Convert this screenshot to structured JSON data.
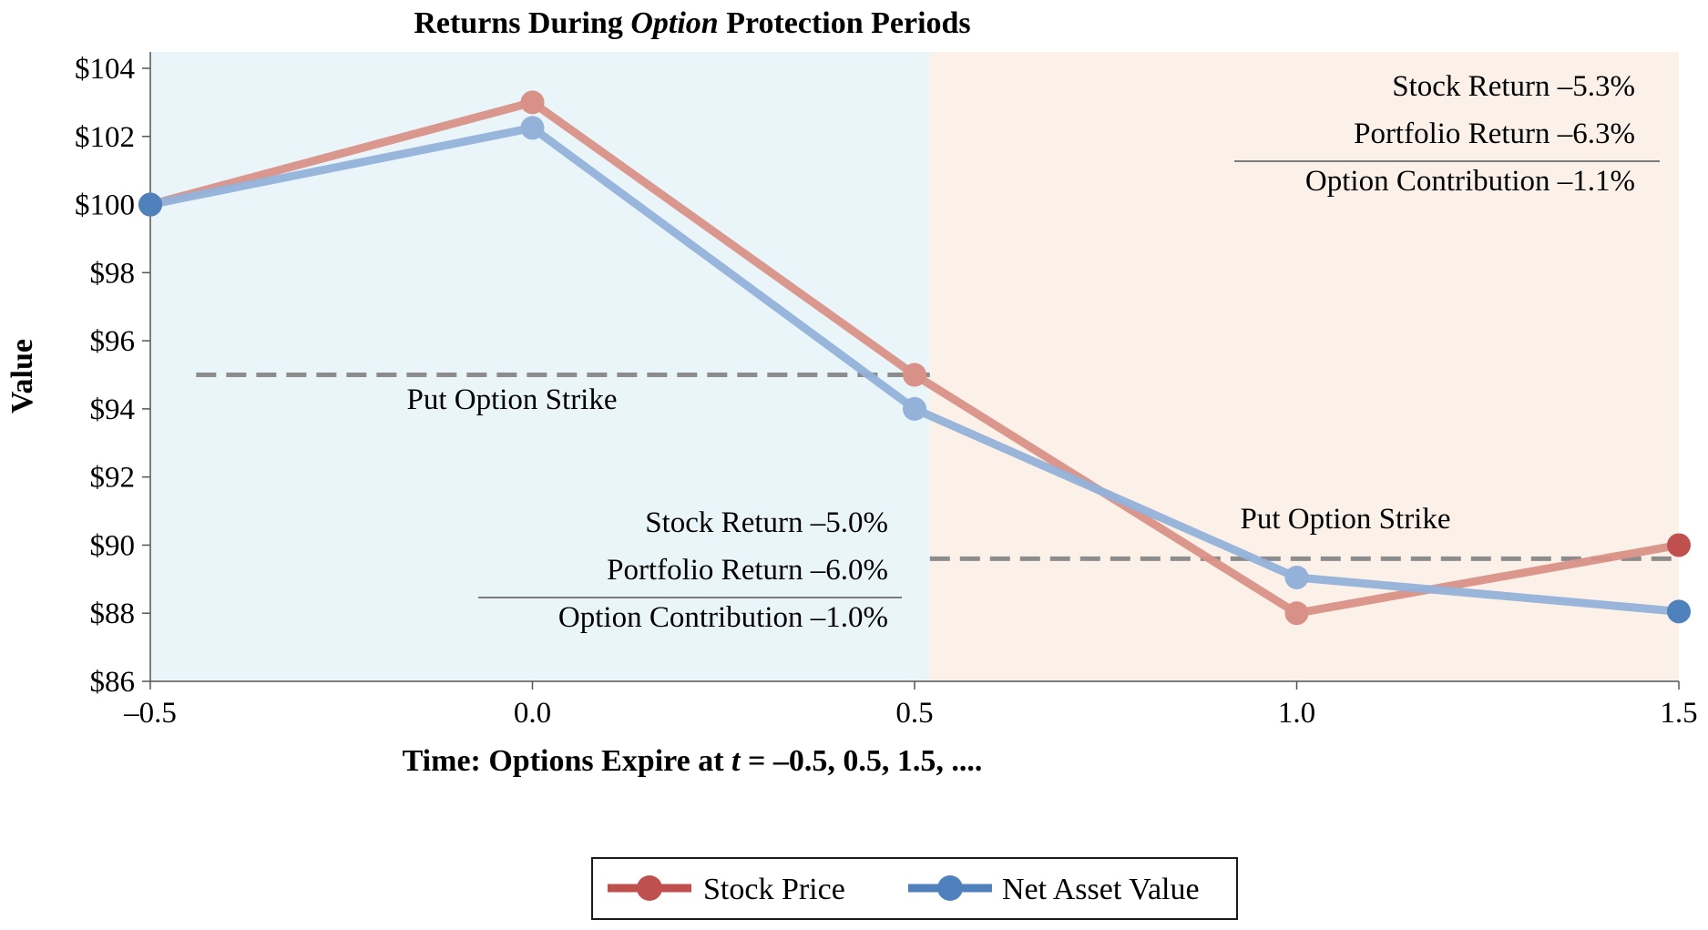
{
  "chart_data": {
    "type": "line",
    "title": {
      "prefix": "Returns During ",
      "emphasis": "Option",
      "suffix": " Protection Periods"
    },
    "xlabel": {
      "prefix": "Time: Options Expire at ",
      "emphasis": "t",
      "suffix": " = –0.5, 0.5, 1.5, ...."
    },
    "ylabel": "Value",
    "x": [
      -0.5,
      0.0,
      0.5,
      1.0,
      1.5
    ],
    "x_tick_labels": [
      "–0.5",
      "0.0",
      "0.5",
      "1.0",
      "1.5"
    ],
    "y_ticks": [
      86,
      88,
      90,
      92,
      94,
      96,
      98,
      100,
      102,
      104
    ],
    "y_tick_labels": [
      "$86",
      "$88",
      "$90",
      "$92",
      "$94",
      "$96",
      "$98",
      "$100",
      "$102",
      "$104"
    ],
    "xlim": [
      -0.5,
      1.5
    ],
    "ylim": [
      86,
      104
    ],
    "series": [
      {
        "name": "Stock Price",
        "color": "#c0504d",
        "faded_color": "#d99187",
        "values": [
          100,
          103,
          95,
          88,
          90
        ]
      },
      {
        "name": "Net Asset Value",
        "color": "#4f81bd",
        "faded_color": "#94b1d9",
        "values": [
          100,
          102.25,
          94,
          89.05,
          88.05
        ]
      }
    ],
    "periods": [
      {
        "from": -0.5,
        "to": 0.52,
        "color": "#eaf5f9"
      },
      {
        "from": 0.52,
        "to": 1.5,
        "color": "#fcf1e9"
      }
    ],
    "strike_lines": [
      {
        "label": "Put Option Strike",
        "value": 95.0,
        "from": -0.44,
        "to": 0.52
      },
      {
        "label": "Put Option Strike",
        "value": 89.6,
        "from": 0.52,
        "to": 1.5
      }
    ],
    "annotations": [
      {
        "stock_return": "Stock Return –5.0%",
        "portfolio_return": "Portfolio Return –6.0%",
        "option_contribution": "Option Contribution –1.0%"
      },
      {
        "stock_return": "Stock Return –5.3%",
        "portfolio_return": "Portfolio Return –6.3%",
        "option_contribution": "Option Contribution –1.1%"
      }
    ],
    "strike_color": "#8c8c8c",
    "grid": false,
    "legend_position": "bottom-center"
  }
}
